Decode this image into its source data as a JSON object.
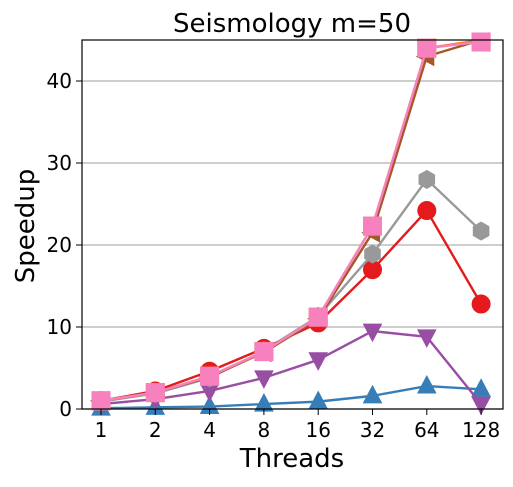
{
  "chart_data": {
    "type": "line",
    "title": "Seismology m=50",
    "xlabel": "Threads",
    "ylabel": "Speedup",
    "categories": [
      "1",
      "2",
      "4",
      "8",
      "16",
      "32",
      "64",
      "128"
    ],
    "ylim": [
      0,
      45
    ],
    "yticks": [
      0,
      10,
      20,
      30,
      40
    ],
    "grid": "horizontal",
    "legend": "none",
    "series": [
      {
        "color": "#377eb8",
        "marker": "triangle-up",
        "values": [
          0.1,
          0.2,
          0.3,
          0.6,
          0.9,
          1.6,
          2.8,
          2.4
        ]
      },
      {
        "color": "#984ea3",
        "marker": "triangle-down",
        "values": [
          0.6,
          1.2,
          2.2,
          3.8,
          6.0,
          9.5,
          8.8,
          0.6
        ]
      },
      {
        "color": "#e41a1c",
        "marker": "circle",
        "values": [
          1.0,
          2.2,
          4.6,
          7.4,
          10.5,
          17.0,
          24.2,
          12.8
        ]
      },
      {
        "color": "#999999",
        "marker": "hexagon",
        "values": [
          0.9,
          1.9,
          3.8,
          7.1,
          11.3,
          18.9,
          28.0,
          21.7
        ]
      },
      {
        "color": "#ff7f00",
        "marker": "square",
        "values": [
          1.0,
          2.0,
          4.0,
          7.0,
          11.2,
          22.3,
          44.0,
          45.0
        ]
      },
      {
        "color": "#a65628",
        "marker": "tri-left",
        "values": [
          1.0,
          2.0,
          3.9,
          6.9,
          11.0,
          21.5,
          43.0,
          45.0
        ]
      },
      {
        "color": "#f781bf",
        "marker": "square",
        "values": [
          1.0,
          2.0,
          4.0,
          7.0,
          11.2,
          22.3,
          44.0,
          44.8
        ]
      }
    ]
  }
}
